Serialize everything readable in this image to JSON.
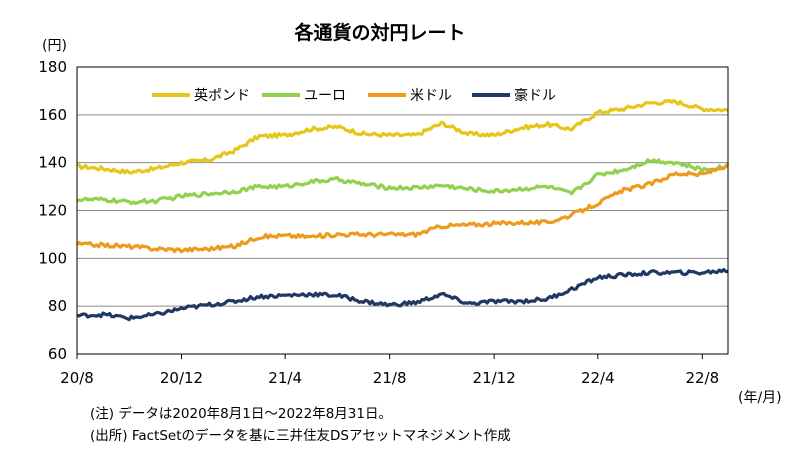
{
  "chart_data": {
    "type": "line",
    "title": "各通貨の対円レート",
    "ylabel": "(円)",
    "xlabel": "(年/月)",
    "ylim": [
      60,
      180
    ],
    "yticks": [
      60,
      80,
      100,
      120,
      140,
      160,
      180
    ],
    "xlim": [
      "2020-08-01",
      "2022-08-31"
    ],
    "xticks": [
      {
        "label": "20/8",
        "date": "2020-08-01"
      },
      {
        "label": "20/12",
        "date": "2020-12-01"
      },
      {
        "label": "21/4",
        "date": "2021-04-01"
      },
      {
        "label": "21/8",
        "date": "2021-08-01"
      },
      {
        "label": "21/12",
        "date": "2021-12-01"
      },
      {
        "label": "22/4",
        "date": "2022-04-01"
      },
      {
        "label": "22/8",
        "date": "2022-08-01"
      }
    ],
    "grid": true,
    "legend": "top",
    "x": [
      "2020-08-01",
      "2020-09-01",
      "2020-10-01",
      "2020-11-01",
      "2020-12-01",
      "2021-01-01",
      "2021-02-01",
      "2021-03-01",
      "2021-04-01",
      "2021-05-01",
      "2021-06-01",
      "2021-07-01",
      "2021-08-01",
      "2021-09-01",
      "2021-10-01",
      "2021-11-01",
      "2021-12-01",
      "2022-01-01",
      "2022-02-01",
      "2022-03-01",
      "2022-04-01",
      "2022-05-01",
      "2022-06-01",
      "2022-07-01",
      "2022-08-01",
      "2022-08-31"
    ],
    "series": [
      {
        "name": "英ポンド",
        "color": "#e6c619",
        "values": [
          138.5,
          137.5,
          136.0,
          137.5,
          140.0,
          141.0,
          145.0,
          151.0,
          151.5,
          154.0,
          155.0,
          152.0,
          151.5,
          151.5,
          156.5,
          152.0,
          151.5,
          154.5,
          156.0,
          154.0,
          161.0,
          162.5,
          165.0,
          165.5,
          162.5,
          162.0
        ]
      },
      {
        "name": "ユーロ",
        "color": "#92d050",
        "values": [
          124.5,
          124.5,
          123.5,
          124.0,
          126.0,
          127.0,
          128.0,
          130.0,
          130.0,
          132.0,
          133.0,
          131.0,
          129.5,
          129.5,
          130.5,
          129.0,
          128.0,
          129.0,
          130.0,
          127.0,
          135.0,
          137.0,
          141.0,
          140.0,
          137.0,
          138.5
        ]
      },
      {
        "name": "米ドル",
        "color": "#ed9b1e",
        "values": [
          106.0,
          105.5,
          105.0,
          104.0,
          103.5,
          104.0,
          105.0,
          109.0,
          109.5,
          109.0,
          110.0,
          110.0,
          110.0,
          110.0,
          113.5,
          114.0,
          114.5,
          115.0,
          115.0,
          118.0,
          123.0,
          128.5,
          131.0,
          135.5,
          135.0,
          139.0
        ]
      },
      {
        "name": "豪ドル",
        "color": "#1f3864",
        "values": [
          76.0,
          76.5,
          75.0,
          76.5,
          79.0,
          80.5,
          82.0,
          84.0,
          84.5,
          85.0,
          84.5,
          82.0,
          80.5,
          81.5,
          85.0,
          81.0,
          82.0,
          82.0,
          83.0,
          87.0,
          92.0,
          93.0,
          94.0,
          94.0,
          94.0,
          95.0
        ]
      }
    ]
  },
  "notes": {
    "note1": "(注) データは2020年8月1日～2022年8月31日。",
    "note2": "(出所) FactSetのデータを基に三井住友DSアセットマネジメント作成"
  }
}
